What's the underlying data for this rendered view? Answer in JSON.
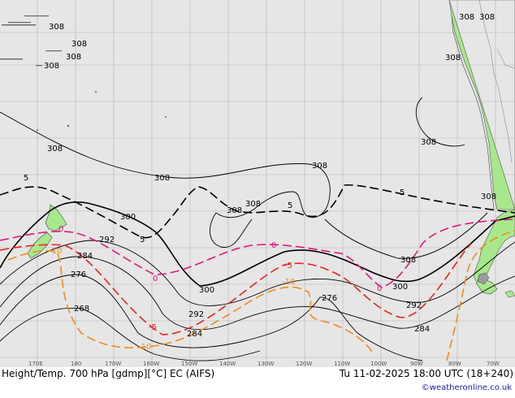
{
  "map": {
    "title": "Height/Temp. 700 hPa [gdmp][°C] EC (AIFS)",
    "valid_time": "Tu 11-02-2025 18:00 UTC (18+240)",
    "credit": "©weatheronline.co.uk",
    "longitude_labels": [
      "170E",
      "180",
      "170W",
      "160W",
      "150W",
      "140W",
      "130W",
      "120W",
      "110W",
      "100W",
      "90W",
      "80W",
      "70W"
    ],
    "colors": {
      "ocean": "#e6e6e6",
      "land": "#a8e88c",
      "height_contour": "#000000",
      "isotherm_5": "#000000",
      "isotherm_0": "#e0187a",
      "isotherm_neg5": "#e8241c",
      "isotherm_neg10": "#f08c1c"
    },
    "height_labels": [
      {
        "id": "h308a",
        "text": "308"
      },
      {
        "id": "h308b",
        "text": "308"
      },
      {
        "id": "h308c",
        "text": "308"
      },
      {
        "id": "h308d",
        "text": "308"
      },
      {
        "id": "h308e",
        "text": "308"
      },
      {
        "id": "h308f",
        "text": "308"
      },
      {
        "id": "h308g",
        "text": "308"
      },
      {
        "id": "h308h",
        "text": "308"
      },
      {
        "id": "h308i",
        "text": "308"
      },
      {
        "id": "h308j",
        "text": "308"
      },
      {
        "id": "h308k",
        "text": "308"
      },
      {
        "id": "h308l",
        "text": "308"
      },
      {
        "id": "h308m",
        "text": "308"
      },
      {
        "id": "h308n",
        "text": "308"
      },
      {
        "id": "h308o",
        "text": "308"
      },
      {
        "id": "h300a",
        "text": "300"
      },
      {
        "id": "h300b",
        "text": "300"
      },
      {
        "id": "h300c",
        "text": "300"
      },
      {
        "id": "h292a",
        "text": "292"
      },
      {
        "id": "h292b",
        "text": "292"
      },
      {
        "id": "h292c",
        "text": "292"
      },
      {
        "id": "h284a",
        "text": "284"
      },
      {
        "id": "h284b",
        "text": "284"
      },
      {
        "id": "h284c",
        "text": "284"
      },
      {
        "id": "h276a",
        "text": "276"
      },
      {
        "id": "h276b",
        "text": "276"
      },
      {
        "id": "h268a",
        "text": "268"
      }
    ],
    "temp_labels": [
      {
        "id": "t5a",
        "text": "5",
        "color": "#000000"
      },
      {
        "id": "t5b",
        "text": "5",
        "color": "#000000"
      },
      {
        "id": "t5c",
        "text": "5",
        "color": "#000000"
      },
      {
        "id": "t5d",
        "text": "5",
        "color": "#000000"
      },
      {
        "id": "t0a",
        "text": "0",
        "color": "#e0187a"
      },
      {
        "id": "t0b",
        "text": "0",
        "color": "#e0187a"
      },
      {
        "id": "t0c",
        "text": "0",
        "color": "#e0187a"
      },
      {
        "id": "t0d",
        "text": "0",
        "color": "#e0187a"
      },
      {
        "id": "tm5a",
        "text": "-5",
        "color": "#e8241c"
      },
      {
        "id": "tm5b",
        "text": "-5",
        "color": "#e8241c"
      },
      {
        "id": "tm10a",
        "text": "-10",
        "color": "#f08c1c"
      },
      {
        "id": "tm10b",
        "text": "-10",
        "color": "#f08c1c"
      },
      {
        "id": "tm10c",
        "text": "-10",
        "color": "#f08c1c"
      }
    ]
  }
}
